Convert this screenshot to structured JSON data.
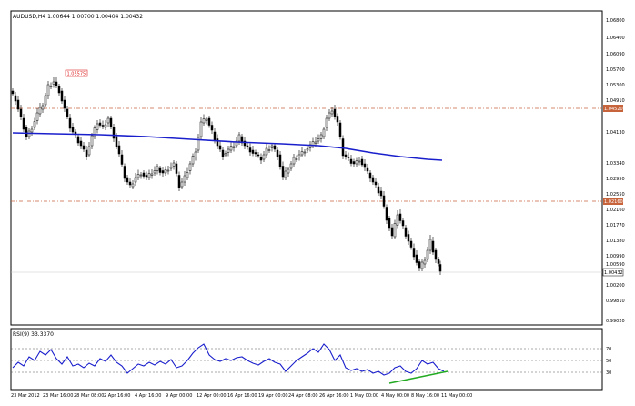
{
  "header": {
    "symbol_info": "AUDUSD,H4  1.00644 1.00700 1.00404 1.00432"
  },
  "price_axis": {
    "labels": [
      "1.06800",
      "1.06400",
      "1.06090",
      "1.05700",
      "1.05300",
      "1.04910",
      "1.04130",
      "1.03340",
      "1.02950",
      "1.02550",
      "1.02160",
      "1.01770",
      "1.01380",
      "1.00990",
      "1.00590",
      "1.00200",
      "0.99810",
      "0.99020"
    ],
    "tags": [
      "1.04520",
      "1.02160",
      "1.00432"
    ]
  },
  "time_axis": {
    "labels": [
      "23 Mar 2012",
      "23 Mar 16:00",
      "28 Mar 08:00",
      "2 Apr 16:00",
      "4 Apr 16:00",
      "9 Apr 00:00",
      "12 Apr 00:00",
      "16 Apr 16:00",
      "19 Apr 00:00",
      "24 Apr 08:00",
      "26 Apr 16:00",
      "1 May 00:00",
      "4 May 00:00",
      "8 May 16:00",
      "11 May 00:00"
    ]
  },
  "annotations": {
    "peak_label": "1.05575"
  },
  "indicator": {
    "title": "RSI(9) 33.3370",
    "levels": [
      "70",
      "50",
      "30"
    ]
  },
  "colors": {
    "candles": "#000000",
    "moving_average": "#1a1fcc",
    "rsi_line": "#1a1fcc",
    "level_lines": "#c8643c",
    "divergence_line": "#22aa22",
    "label_border": "#dd2222"
  },
  "chart_data": {
    "type": "line",
    "title": "AUDUSD,H4",
    "series": [
      {
        "name": "",
        "x": [
          "23 Mar 2012",
          "23 Mar 16:00",
          "28 Mar 08:00",
          "2 Apr 16:00",
          "4 Apr 16:00",
          "9 Apr 00:00",
          "12 Apr 00:00",
          "16 Apr 16:00",
          "19 Apr 00:00",
          "24 Apr 08:00",
          "26 Apr 16:00",
          "1 May 00:00",
          "4 May 00:00",
          "8 May 16:00",
          "11 May 00:00"
        ],
        "values": [
          1.043,
          1.049,
          1.046,
          1.042,
          1.03,
          1.033,
          1.043,
          1.039,
          1.037,
          1.032,
          1.044,
          1.035,
          1.02,
          1.006,
          1.0043
        ]
      }
    ],
    "ylim": [
      0.9902,
      1.068
    ],
    "grid": false
  }
}
